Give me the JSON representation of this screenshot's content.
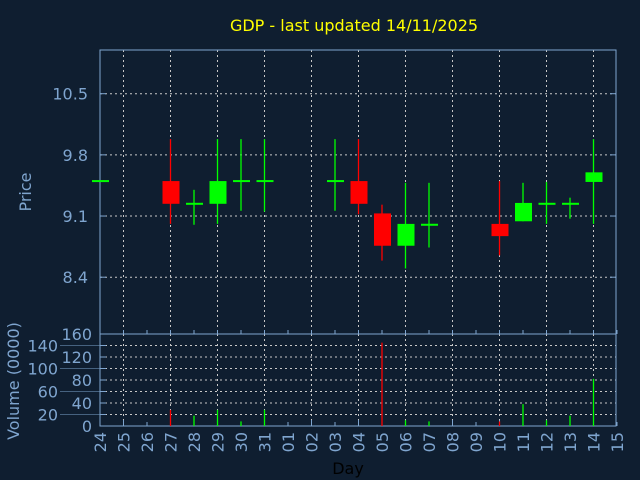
{
  "chart_data": {
    "type": "candlestick",
    "title": "GDP - last updated 14/11/2025",
    "xlabel": "Day",
    "ylabel": "Price",
    "volume_label": "Volume (0000)",
    "x_ticks": [
      "24",
      "25",
      "26",
      "27",
      "28",
      "29",
      "30",
      "31",
      "01",
      "02",
      "03",
      "04",
      "05",
      "06",
      "07",
      "08",
      "09",
      "10",
      "11",
      "12",
      "13",
      "14",
      "15"
    ],
    "price_ticks": [
      8.4,
      9.1,
      9.8,
      10.5
    ],
    "price_tick_labels": [
      "8.4",
      "9.1",
      "9.8",
      "10.5"
    ],
    "ylim": [
      7.75,
      11.0
    ],
    "volume_ticks": [
      "0",
      "20",
      "40",
      "60",
      "80",
      "100",
      "120",
      "140",
      "160"
    ],
    "volume_lim": [
      0,
      160
    ],
    "grid": true,
    "colors": {
      "up": "#00ff00",
      "down": "#ff0000",
      "background": "#0f1e30",
      "axis": "#7fa5cf",
      "title": "#ffff00",
      "grid": "#c8c8c8"
    },
    "candles": [
      {
        "day": "24",
        "open": 9.5,
        "high": 9.5,
        "low": 9.5,
        "close": 9.5,
        "volume": 0
      },
      {
        "day": "27",
        "open": 9.5,
        "high": 9.98,
        "low": 9.01,
        "close": 9.24,
        "volume": 28
      },
      {
        "day": "28",
        "open": 9.24,
        "high": 9.4,
        "low": 9.0,
        "close": 9.24,
        "volume": 18
      },
      {
        "day": "29",
        "open": 9.24,
        "high": 9.98,
        "low": 9.01,
        "close": 9.5,
        "volume": 28
      },
      {
        "day": "30",
        "open": 9.5,
        "high": 9.98,
        "low": 9.16,
        "close": 9.5,
        "volume": 8
      },
      {
        "day": "31",
        "open": 9.5,
        "high": 9.98,
        "low": 9.15,
        "close": 9.5,
        "volume": 28
      },
      {
        "day": "03",
        "open": 9.5,
        "high": 9.98,
        "low": 9.16,
        "close": 9.5,
        "volume": 0
      },
      {
        "day": "04",
        "open": 9.5,
        "high": 9.98,
        "low": 9.12,
        "close": 9.24,
        "volume": 0
      },
      {
        "day": "05",
        "open": 9.13,
        "high": 9.23,
        "low": 8.59,
        "close": 8.76,
        "volume": 145
      },
      {
        "day": "06",
        "open": 8.76,
        "high": 9.48,
        "low": 8.5,
        "close": 9.01,
        "volume": 10
      },
      {
        "day": "07",
        "open": 9.0,
        "high": 9.48,
        "low": 8.74,
        "close": 9.0,
        "volume": 8
      },
      {
        "day": "10",
        "open": 9.01,
        "high": 9.5,
        "low": 8.65,
        "close": 8.87,
        "volume": 8
      },
      {
        "day": "11",
        "open": 9.04,
        "high": 9.48,
        "low": 9.04,
        "close": 9.25,
        "volume": 38
      },
      {
        "day": "12",
        "open": 9.24,
        "high": 9.49,
        "low": 9.01,
        "close": 9.24,
        "volume": 10
      },
      {
        "day": "13",
        "open": 9.24,
        "high": 9.31,
        "low": 9.07,
        "close": 9.24,
        "volume": 18
      },
      {
        "day": "14",
        "open": 9.49,
        "high": 9.98,
        "low": 9.01,
        "close": 9.6,
        "volume": 82
      }
    ]
  }
}
